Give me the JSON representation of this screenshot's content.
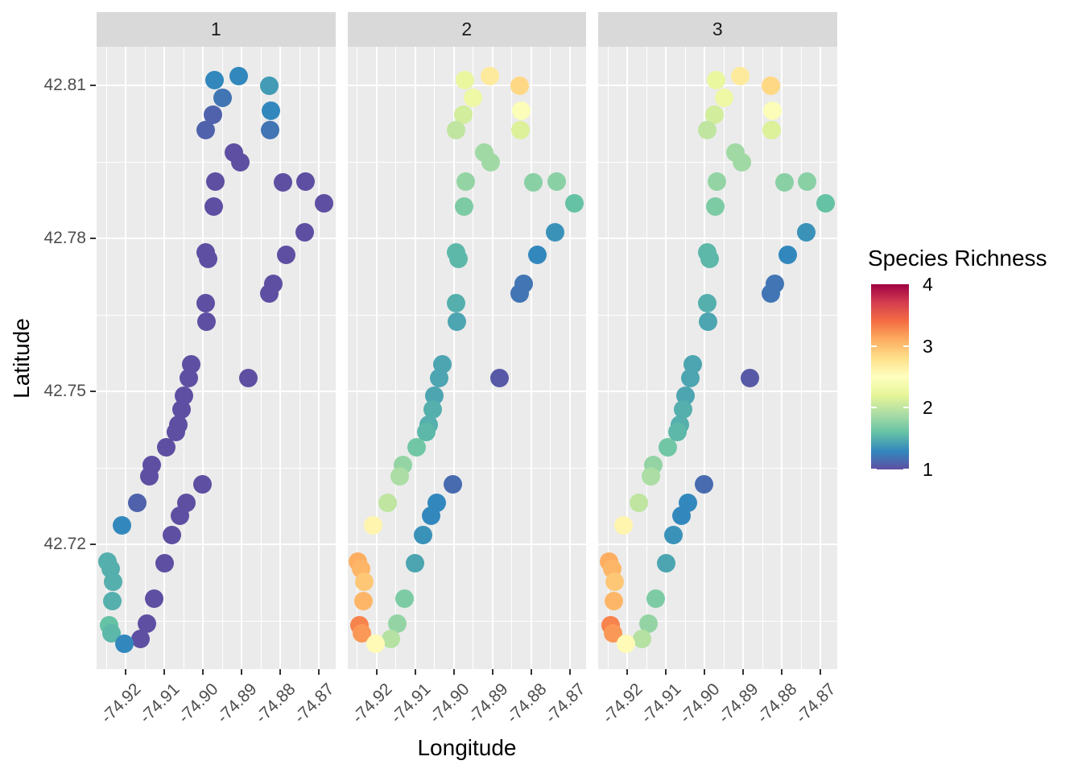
{
  "figure": {
    "background": "#ffffff",
    "panel_bg": "#ebebeb",
    "strip_bg": "#d9d9d9",
    "grid_color": "#ffffff",
    "tick_color": "#333333",
    "axis_text_color": "#4d4d4d",
    "title_color": "#000000"
  },
  "chart_data": {
    "type": "scatter",
    "subtype": "faceted-map-scatter",
    "title": "",
    "xlabel": "Longitude",
    "ylabel": "Latitude",
    "facets": [
      "1",
      "2",
      "3"
    ],
    "x_ticks": [
      -74.92,
      -74.91,
      -74.9,
      -74.89,
      -74.88,
      -74.87
    ],
    "x_tick_labels": [
      "-74.92",
      "-74.91",
      "-74.90",
      "-74.89",
      "-74.88",
      "-74.87"
    ],
    "x_minor": [
      -74.925,
      -74.915,
      -74.905,
      -74.895,
      -74.885,
      -74.875
    ],
    "y_ticks": [
      42.81,
      42.78,
      42.75,
      42.72
    ],
    "y_tick_labels": [
      "42.81",
      "42.78",
      "42.75",
      "42.72"
    ],
    "y_minor": [
      42.795,
      42.765,
      42.735,
      42.705
    ],
    "x_range": [
      -74.9276,
      -74.8658
    ],
    "y_range": [
      42.6956,
      42.8176
    ],
    "grid": true,
    "legend": {
      "title": "Species Richness",
      "breaks": [
        4,
        3,
        2,
        1
      ],
      "tick_breaks": [
        1,
        2,
        3
      ],
      "range": [
        1,
        4
      ],
      "position": "right",
      "palette_low_to_high": [
        "#5e4fa2",
        "#3288bd",
        "#66c2a5",
        "#abdda4",
        "#e6f598",
        "#ffffbf",
        "#fee08b",
        "#fdae61",
        "#f46d43",
        "#d53e4f",
        "#9e0142"
      ]
    },
    "points": [
      {
        "lon": -74.8971,
        "lat": 42.8111,
        "richness": [
          1.3,
          2.25,
          2.25
        ]
      },
      {
        "lon": -74.8908,
        "lat": 42.8119,
        "richness": [
          1.3,
          2.7,
          2.7
        ]
      },
      {
        "lon": -74.8829,
        "lat": 42.81,
        "richness": [
          1.4,
          2.85,
          2.85
        ]
      },
      {
        "lon": -74.895,
        "lat": 42.8076,
        "richness": [
          1.2,
          2.3,
          2.3
        ]
      },
      {
        "lon": -74.8975,
        "lat": 42.8043,
        "richness": [
          1.1,
          2.1,
          2.1
        ]
      },
      {
        "lon": -74.8825,
        "lat": 42.8051,
        "richness": [
          1.3,
          2.45,
          2.45
        ]
      },
      {
        "lon": -74.8994,
        "lat": 42.8013,
        "richness": [
          1.1,
          2.0,
          2.0
        ]
      },
      {
        "lon": -74.8827,
        "lat": 42.8013,
        "richness": [
          1.2,
          2.15,
          2.15
        ]
      },
      {
        "lon": -74.8921,
        "lat": 42.7969,
        "richness": [
          1.0,
          1.85,
          1.85
        ]
      },
      {
        "lon": -74.8904,
        "lat": 42.795,
        "richness": [
          1.0,
          1.85,
          1.85
        ]
      },
      {
        "lon": -74.8969,
        "lat": 42.7912,
        "richness": [
          1.0,
          1.8,
          1.8
        ]
      },
      {
        "lon": -74.8794,
        "lat": 42.791,
        "richness": [
          1.0,
          1.75,
          1.75
        ]
      },
      {
        "lon": -74.8735,
        "lat": 42.7912,
        "richness": [
          1.0,
          1.75,
          1.75
        ]
      },
      {
        "lon": -74.8688,
        "lat": 42.7869,
        "richness": [
          1.0,
          1.6,
          1.6
        ]
      },
      {
        "lon": -74.8973,
        "lat": 42.7863,
        "richness": [
          1.0,
          1.7,
          1.7
        ]
      },
      {
        "lon": -74.8738,
        "lat": 42.7812,
        "richness": [
          1.0,
          1.35,
          1.35
        ]
      },
      {
        "lon": -74.8994,
        "lat": 42.7773,
        "richness": [
          1.0,
          1.55,
          1.55
        ]
      },
      {
        "lon": -74.8988,
        "lat": 42.776,
        "richness": [
          1.0,
          1.55,
          1.55
        ]
      },
      {
        "lon": -74.8785,
        "lat": 42.7768,
        "richness": [
          1.0,
          1.3,
          1.3
        ]
      },
      {
        "lon": -74.8819,
        "lat": 42.7711,
        "richness": [
          1.0,
          1.2,
          1.2
        ]
      },
      {
        "lon": -74.8829,
        "lat": 42.7692,
        "richness": [
          1.0,
          1.2,
          1.2
        ]
      },
      {
        "lon": -74.8994,
        "lat": 42.7673,
        "richness": [
          1.0,
          1.5,
          1.5
        ]
      },
      {
        "lon": -74.8992,
        "lat": 42.7637,
        "richness": [
          1.0,
          1.45,
          1.45
        ]
      },
      {
        "lon": -74.9031,
        "lat": 42.7553,
        "richness": [
          1.0,
          1.45,
          1.45
        ]
      },
      {
        "lon": -74.9038,
        "lat": 42.7527,
        "richness": [
          1.0,
          1.45,
          1.45
        ]
      },
      {
        "lon": -74.8883,
        "lat": 42.7527,
        "richness": [
          1.0,
          1.05,
          1.05
        ]
      },
      {
        "lon": -74.905,
        "lat": 42.7492,
        "richness": [
          1.0,
          1.45,
          1.45
        ]
      },
      {
        "lon": -74.9056,
        "lat": 42.7465,
        "richness": [
          1.0,
          1.5,
          1.5
        ]
      },
      {
        "lon": -74.9065,
        "lat": 42.7435,
        "richness": [
          1.0,
          1.5,
          1.5
        ]
      },
      {
        "lon": -74.9071,
        "lat": 42.7421,
        "richness": [
          1.0,
          1.55,
          1.55
        ]
      },
      {
        "lon": -74.9096,
        "lat": 42.7391,
        "richness": [
          1.0,
          1.65,
          1.65
        ]
      },
      {
        "lon": -74.9133,
        "lat": 42.7356,
        "richness": [
          1.0,
          1.8,
          1.8
        ]
      },
      {
        "lon": -74.914,
        "lat": 42.7334,
        "richness": [
          1.0,
          1.9,
          1.9
        ]
      },
      {
        "lon": -74.9002,
        "lat": 42.7318,
        "richness": [
          1.0,
          1.15,
          1.15
        ]
      },
      {
        "lon": -74.9171,
        "lat": 42.7282,
        "richness": [
          1.1,
          2.0,
          2.0
        ]
      },
      {
        "lon": -74.9044,
        "lat": 42.7282,
        "richness": [
          1.0,
          1.3,
          1.3
        ]
      },
      {
        "lon": -74.906,
        "lat": 42.7256,
        "richness": [
          1.0,
          1.3,
          1.3
        ]
      },
      {
        "lon": -74.921,
        "lat": 42.7237,
        "richness": [
          1.3,
          2.6,
          2.6
        ]
      },
      {
        "lon": -74.9081,
        "lat": 42.7219,
        "richness": [
          1.0,
          1.35,
          1.35
        ]
      },
      {
        "lon": -74.9248,
        "lat": 42.7166,
        "richness": [
          1.5,
          3.1,
          3.1
        ]
      },
      {
        "lon": -74.924,
        "lat": 42.7152,
        "richness": [
          1.5,
          3.05,
          3.05
        ]
      },
      {
        "lon": -74.9233,
        "lat": 42.7127,
        "richness": [
          1.5,
          2.95,
          2.95
        ]
      },
      {
        "lon": -74.9235,
        "lat": 42.7089,
        "richness": [
          1.5,
          3.05,
          3.05
        ]
      },
      {
        "lon": -74.9244,
        "lat": 42.7042,
        "richness": [
          1.6,
          3.3,
          3.3
        ]
      },
      {
        "lon": -74.9238,
        "lat": 42.7026,
        "richness": [
          1.55,
          3.2,
          3.2
        ]
      },
      {
        "lon": -74.91,
        "lat": 42.7164,
        "richness": [
          1.0,
          1.45,
          1.45
        ]
      },
      {
        "lon": -74.9127,
        "lat": 42.7094,
        "richness": [
          1.0,
          1.7,
          1.7
        ]
      },
      {
        "lon": -74.9146,
        "lat": 42.7045,
        "richness": [
          1.0,
          1.8,
          1.8
        ]
      },
      {
        "lon": -74.9163,
        "lat": 42.7015,
        "richness": [
          1.0,
          1.95,
          1.95
        ]
      },
      {
        "lon": -74.9204,
        "lat": 42.7005,
        "richness": [
          1.3,
          2.55,
          2.55
        ]
      }
    ]
  }
}
